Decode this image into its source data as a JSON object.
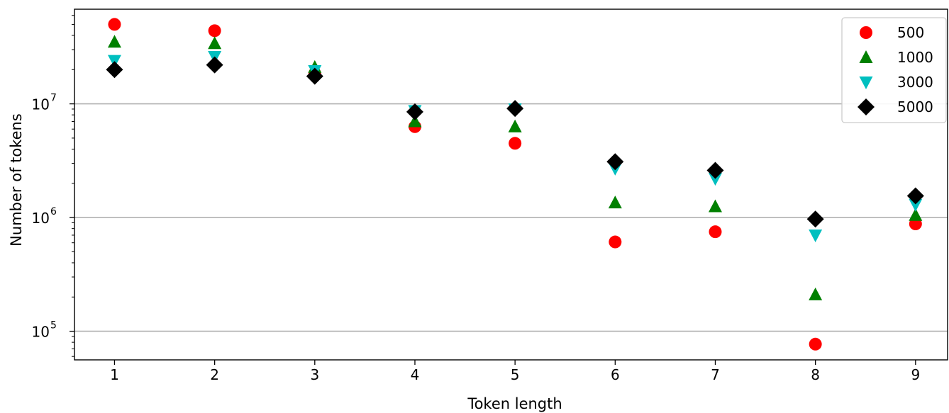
{
  "chart_data": {
    "type": "scatter",
    "xlabel": "Token length",
    "ylabel": "Number of tokens",
    "yscale": "log",
    "xlim": [
      0.6,
      9.32
    ],
    "ylim": [
      56000,
      68000000
    ],
    "x_ticks": [
      1,
      2,
      3,
      4,
      5,
      6,
      7,
      8,
      9
    ],
    "y_ticks": [
      {
        "value": 100000,
        "base": "10",
        "exp": "5"
      },
      {
        "value": 1000000,
        "base": "10",
        "exp": "6"
      },
      {
        "value": 10000000,
        "base": "10",
        "exp": "7"
      }
    ],
    "grid": "horizontal major",
    "legend_position": "top-right",
    "x": [
      1,
      2,
      3,
      4,
      5,
      6,
      7,
      8,
      9
    ],
    "series": [
      {
        "name": "500",
        "marker": "circle",
        "color": "#ff0000",
        "values": [
          50000000,
          44000000,
          18500000,
          6300000,
          4500000,
          610000,
          750000,
          77000,
          880000
        ]
      },
      {
        "name": "1000",
        "marker": "triangle-up",
        "color": "#008000",
        "values": [
          35000000,
          34000000,
          21000000,
          7000000,
          6300000,
          1350000,
          1250000,
          210000,
          1050000
        ]
      },
      {
        "name": "3000",
        "marker": "triangle-down",
        "color": "#00bfbf",
        "values": [
          24000000,
          26000000,
          19500000,
          8700000,
          9000000,
          2700000,
          2200000,
          700000,
          1300000
        ]
      },
      {
        "name": "5000",
        "marker": "diamond",
        "color": "#000000",
        "values": [
          20000000,
          22000000,
          17500000,
          8500000,
          9100000,
          3100000,
          2600000,
          970000,
          1550000
        ]
      }
    ]
  }
}
